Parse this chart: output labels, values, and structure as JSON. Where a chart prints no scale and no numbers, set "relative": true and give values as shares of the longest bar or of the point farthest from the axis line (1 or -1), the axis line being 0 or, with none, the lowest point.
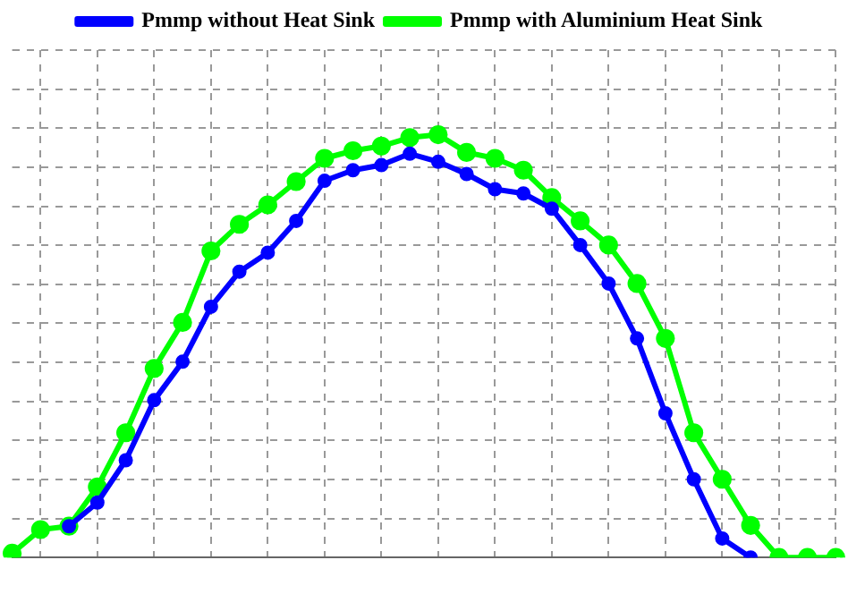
{
  "chart_data": {
    "type": "line",
    "relative": true,
    "grid": true,
    "legend": "top",
    "marker": "circle",
    "line_style": "solid",
    "categories": [
      null,
      null,
      null,
      null,
      null,
      null,
      null,
      null,
      null,
      null,
      null,
      null,
      null,
      null,
      null,
      null,
      null,
      null,
      null,
      null,
      null,
      null,
      null,
      null,
      null,
      null,
      null,
      null,
      null,
      null
    ],
    "series": [
      {
        "name": "Pmmp without Heat Sink",
        "color": "#0000ff",
        "values": [
          null,
          null,
          0.074,
          0.13,
          0.23,
          0.372,
          0.463,
          0.593,
          0.676,
          0.721,
          0.796,
          0.891,
          0.916,
          0.928,
          0.955,
          0.936,
          0.907,
          0.871,
          0.861,
          0.825,
          0.739,
          0.648,
          0.518,
          0.341,
          0.185,
          0.045,
          0,
          null,
          null,
          null
        ]
      },
      {
        "name": "Pmmp with Aluminium Heat Sink",
        "color": "#00ff00",
        "values": [
          0.01,
          0.066,
          0.074,
          0.167,
          0.295,
          0.447,
          0.556,
          0.725,
          0.788,
          0.834,
          0.889,
          0.944,
          0.962,
          0.973,
          0.993,
          1,
          0.958,
          0.944,
          0.916,
          0.851,
          0.796,
          0.739,
          0.648,
          0.518,
          0.295,
          0.185,
          0.076,
          0,
          0,
          0
        ]
      }
    ]
  }
}
